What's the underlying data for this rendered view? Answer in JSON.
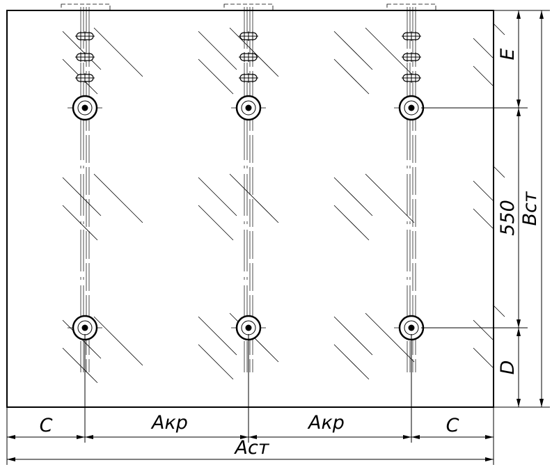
{
  "dimensions": {
    "top": "E",
    "middle": "550",
    "total_height": "Вст",
    "bottom": "D",
    "left": "C",
    "span_1": "Акр",
    "span_2": "Акр",
    "right": "C",
    "total_width": "Аст"
  }
}
